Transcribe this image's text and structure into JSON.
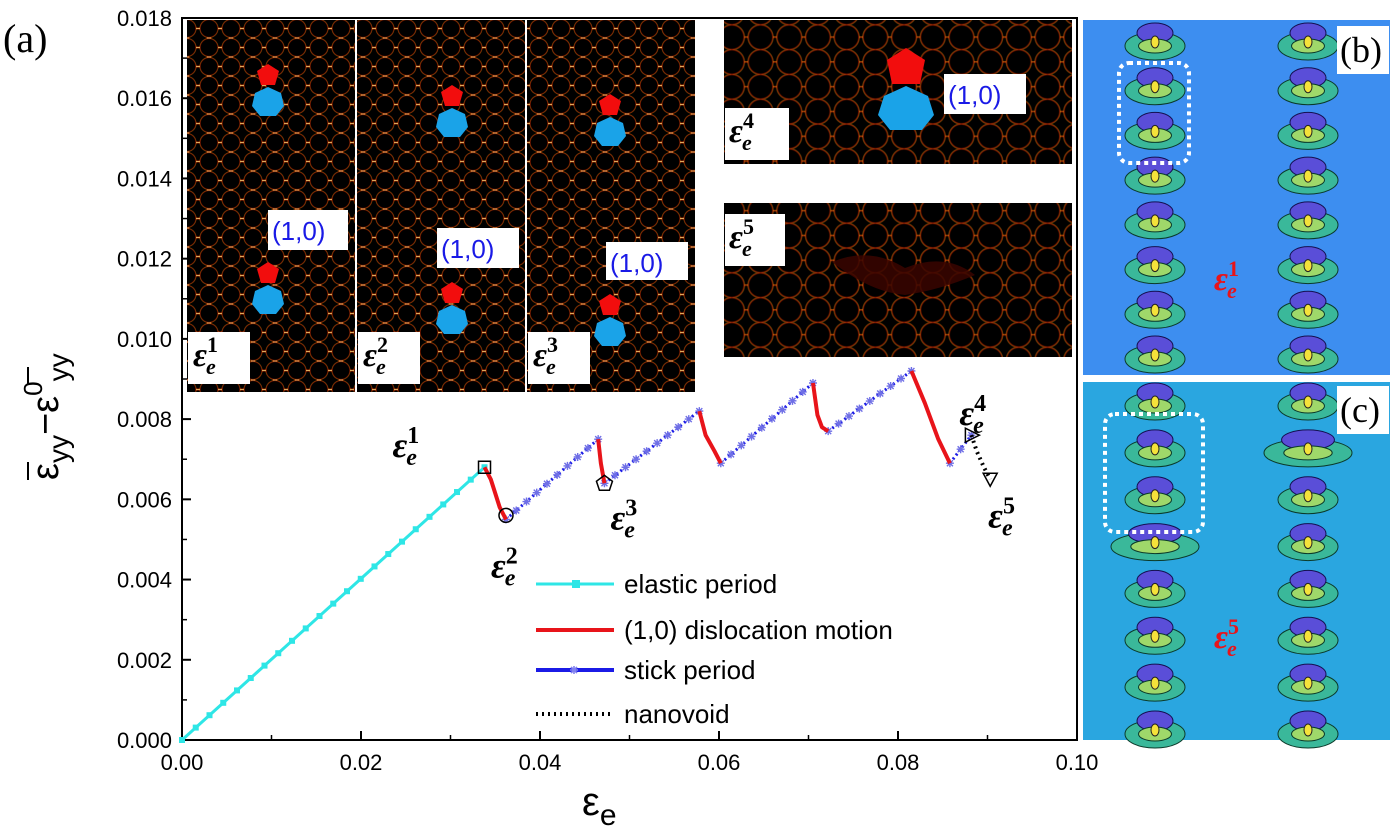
{
  "chart_data": {
    "type": "line",
    "panel_labels": [
      "(a)",
      "(b)",
      "(c)"
    ],
    "xlabel": "ε",
    "xlabel_sub": "e",
    "ylabel": "ε̄yy − ε̄⁰yy",
    "ylabel_parts": {
      "main": "ε",
      "sub1": "yy",
      "minus": "−",
      "main2": "ε",
      "sup2": "0",
      "sub2": "yy"
    },
    "xlim": [
      0.0,
      0.1
    ],
    "ylim": [
      0.0,
      0.018
    ],
    "xticks": [
      "0.00",
      "0.02",
      "0.04",
      "0.06",
      "0.08",
      "0.10"
    ],
    "yticks": [
      "0.000",
      "0.002",
      "0.004",
      "0.006",
      "0.008",
      "0.010",
      "0.012",
      "0.014",
      "0.016",
      "0.018"
    ],
    "series": [
      {
        "name": "elastic period",
        "color": "#2ee6e6",
        "style": "solid-square-markers",
        "x": [
          0.0,
          0.0338
        ],
        "y": [
          0.0,
          0.0068
        ]
      },
      {
        "name": "(1,0) dislocation motion",
        "color": "#e8141a",
        "style": "solid",
        "segments": [
          [
            [
              0.0338,
              0.0068
            ],
            [
              0.0345,
              0.0065
            ],
            [
              0.0355,
              0.0058
            ],
            [
              0.0362,
              0.0055
            ]
          ],
          [
            [
              0.0465,
              0.0075
            ],
            [
              0.0468,
              0.0069
            ],
            [
              0.0472,
              0.0064
            ]
          ],
          [
            [
              0.0578,
              0.0082
            ],
            [
              0.0585,
              0.0076
            ],
            [
              0.0595,
              0.0072
            ],
            [
              0.0602,
              0.0069
            ]
          ],
          [
            [
              0.0705,
              0.0089
            ],
            [
              0.071,
              0.0081
            ],
            [
              0.0715,
              0.0078
            ],
            [
              0.0722,
              0.0077
            ]
          ],
          [
            [
              0.0815,
              0.0092
            ],
            [
              0.083,
              0.0084
            ],
            [
              0.0845,
              0.0075
            ],
            [
              0.0858,
              0.0069
            ]
          ]
        ]
      },
      {
        "name": "stick period",
        "color": "#1b1be6",
        "style": "solid-star-markers",
        "segments": [
          [
            [
              0.0362,
              0.0055
            ],
            [
              0.0465,
              0.0075
            ]
          ],
          [
            [
              0.0472,
              0.0064
            ],
            [
              0.0578,
              0.0082
            ]
          ],
          [
            [
              0.0602,
              0.0069
            ],
            [
              0.0705,
              0.0089
            ]
          ],
          [
            [
              0.0722,
              0.0077
            ],
            [
              0.0815,
              0.0092
            ]
          ],
          [
            [
              0.0858,
              0.0069
            ],
            [
              0.0882,
              0.0076
            ]
          ]
        ]
      },
      {
        "name": "nanovoid",
        "color": "#000000",
        "style": "dotted",
        "x": [
          0.0882,
          0.0888,
          0.0896,
          0.0903
        ],
        "y": [
          0.0076,
          0.0072,
          0.0068,
          0.0065
        ]
      }
    ],
    "marked_points": [
      {
        "label": "ε",
        "sup": "1",
        "sub": "e",
        "x": 0.0338,
        "y": 0.0068,
        "marker": "square"
      },
      {
        "label": "ε",
        "sup": "2",
        "sub": "e",
        "x": 0.0362,
        "y": 0.0056,
        "marker": "circle"
      },
      {
        "label": "ε",
        "sup": "3",
        "sub": "e",
        "x": 0.0472,
        "y": 0.0064,
        "marker": "pentagon"
      },
      {
        "label": "ε",
        "sup": "4",
        "sub": "e",
        "x": 0.0882,
        "y": 0.0076,
        "marker": "triangle"
      },
      {
        "label": "ε",
        "sup": "5",
        "sub": "e",
        "x": 0.0903,
        "y": 0.0065,
        "marker": "triangle-down"
      }
    ],
    "legend": {
      "position": "bottom-center",
      "entries": [
        "elastic period",
        "(1,0) dislocation motion",
        "stick period",
        "nanovoid"
      ]
    },
    "insets": {
      "a_left": [
        {
          "strain": "ε",
          "sup": "1",
          "sub": "e",
          "burgers": "(1,0)"
        },
        {
          "strain": "ε",
          "sup": "2",
          "sub": "e",
          "burgers": "(1,0)"
        },
        {
          "strain": "ε",
          "sup": "3",
          "sub": "e",
          "burgers": "(1,0)"
        }
      ],
      "a_right": [
        {
          "strain": "ε",
          "sup": "4",
          "sub": "e",
          "burgers": "(1,0)"
        },
        {
          "strain": "ε",
          "sup": "5",
          "sub": "e"
        }
      ],
      "b": {
        "strain": "ε",
        "sup": "1",
        "sub": "e",
        "bg": "#3d8ef0"
      },
      "c": {
        "strain": "ε",
        "sup": "5",
        "sub": "e",
        "bg": "#2aa6e0"
      }
    },
    "colors": {
      "pentagon": "#f20d0d",
      "heptagon": "#1aa3e8",
      "atom": "#000000",
      "lattice_bg": "#ffb000",
      "burgers_text": "#1a1ae6",
      "panel_strain_text": "#e8141a"
    }
  }
}
